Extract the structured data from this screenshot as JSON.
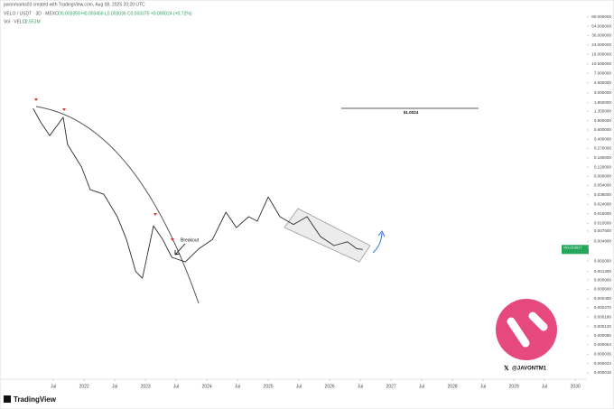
{
  "header": {
    "credit": "javonmarks03 created with TradingView.com, Aug 08, 2025 20:20 UTC",
    "symbol": "VELO / USDT · 3D · MEXC",
    "ohlc": "O0.003359 H0.003456 L0.003036 C0.003375 +0.000024 (+0.72%)",
    "volume": "Vol · VELO",
    "volume_value": "2.551M"
  },
  "chart_data": {
    "type": "line",
    "log_scale": true,
    "color": "#2b2b2b",
    "x": [
      2021.17,
      2021.29,
      2021.44,
      2021.66,
      2021.73,
      2021.96,
      2022.1,
      2022.32,
      2022.54,
      2022.69,
      2022.84,
      2022.95,
      2023.13,
      2023.28,
      2023.43,
      2023.65,
      2023.87,
      2024.09,
      2024.31,
      2024.48,
      2024.68,
      2024.82,
      2025.0,
      2025.19,
      2025.41,
      2025.63,
      2025.85,
      2026.07,
      2026.29,
      2026.44,
      2026.54
    ],
    "values": [
      1.53,
      0.85,
      0.47,
      1.04,
      0.32,
      0.12,
      0.045,
      0.037,
      0.014,
      0.0052,
      0.0013,
      0.00097,
      0.0094,
      0.0052,
      0.0024,
      0.00197,
      0.0035,
      0.0052,
      0.017,
      0.0087,
      0.014,
      0.0115,
      0.033,
      0.014,
      0.01,
      0.014,
      0.0059,
      0.004,
      0.0047,
      0.0035,
      0.003375
    ],
    "xlim": [
      2020.63,
      2030.19
    ],
    "xticks": [
      {
        "value": 2021.5,
        "label": "Jul"
      },
      {
        "value": 2022,
        "label": "2022"
      },
      {
        "value": 2022.5,
        "label": "Jul"
      },
      {
        "value": 2023,
        "label": "2023"
      },
      {
        "value": 2023.5,
        "label": "Jul"
      },
      {
        "value": 2024,
        "label": "2024"
      },
      {
        "value": 2024.5,
        "label": "Jul"
      },
      {
        "value": 2025,
        "label": "2025"
      },
      {
        "value": 2025.5,
        "label": "Jul"
      },
      {
        "value": 2026,
        "label": "2026"
      },
      {
        "value": 2026.5,
        "label": "Jul"
      },
      {
        "value": 2027,
        "label": "2027"
      },
      {
        "value": 2027.5,
        "label": "Jul"
      },
      {
        "value": 2028,
        "label": "2028"
      },
      {
        "value": 2028.5,
        "label": "Jul"
      },
      {
        "value": 2029,
        "label": "2029"
      },
      {
        "value": 2029.5,
        "label": "Jul"
      },
      {
        "value": 2030,
        "label": "2030"
      }
    ],
    "ylim": [
      1.6e-05,
      80
    ],
    "yticks": [
      {
        "value": 80,
        "label": "80.000000"
      },
      {
        "value": 54,
        "label": "54.000000"
      },
      {
        "value": 36,
        "label": "36.000000"
      },
      {
        "value": 24,
        "label": "24.000000"
      },
      {
        "value": 16,
        "label": "16.000000"
      },
      {
        "value": 10.5,
        "label": "10.500000"
      },
      {
        "value": 7,
        "label": "7.000000"
      },
      {
        "value": 4.65,
        "label": "4.650000"
      },
      {
        "value": 3,
        "label": "3.000000"
      },
      {
        "value": 1.95,
        "label": "1.950000"
      },
      {
        "value": 1.35,
        "label": "1.350000"
      },
      {
        "value": 0.9,
        "label": "0.900000"
      },
      {
        "value": 0.6,
        "label": "0.600000"
      },
      {
        "value": 0.4,
        "label": "0.400000"
      },
      {
        "value": 0.27,
        "label": "0.270000"
      },
      {
        "value": 0.18,
        "label": "0.180000"
      },
      {
        "value": 0.12,
        "label": "0.120000"
      },
      {
        "value": 0.08,
        "label": "0.080000"
      },
      {
        "value": 0.054,
        "label": "0.054000"
      },
      {
        "value": 0.036,
        "label": "0.036000"
      },
      {
        "value": 0.024,
        "label": "0.024000"
      },
      {
        "value": 0.016,
        "label": "0.016000"
      },
      {
        "value": 0.0105,
        "label": "0.010500"
      },
      {
        "value": 0.0075,
        "label": "0.007500"
      },
      {
        "value": 0.0048,
        "label": "0.004800"
      },
      {
        "value": 0.00205,
        "label": "0.002050"
      },
      {
        "value": 0.0013,
        "label": "0.001300"
      },
      {
        "value": 0.0009,
        "label": "0.000900"
      },
      {
        "value": 0.0006,
        "label": "0.000600"
      },
      {
        "value": 0.0004,
        "label": "0.000400"
      },
      {
        "value": 0.00027,
        "label": "0.000270"
      },
      {
        "value": 0.00018,
        "label": "0.000180"
      },
      {
        "value": 0.00012,
        "label": "0.000120"
      },
      {
        "value": 8e-05,
        "label": "0.000080"
      },
      {
        "value": 5.4e-05,
        "label": "0.000054"
      },
      {
        "value": 3.6e-05,
        "label": "0.000036"
      },
      {
        "value": 2.4e-05,
        "label": "0.000024"
      },
      {
        "value": 1.6e-05,
        "label": "0.000016"
      }
    ],
    "price_tag": {
      "symbol": "VELOUSDT",
      "price": "0.003375",
      "color": "#26a65b"
    },
    "annotations": {
      "target": "$1.0024",
      "breakout": "Breakout",
      "handle": "@JAVONTM1",
      "brand": "TradingView"
    }
  }
}
